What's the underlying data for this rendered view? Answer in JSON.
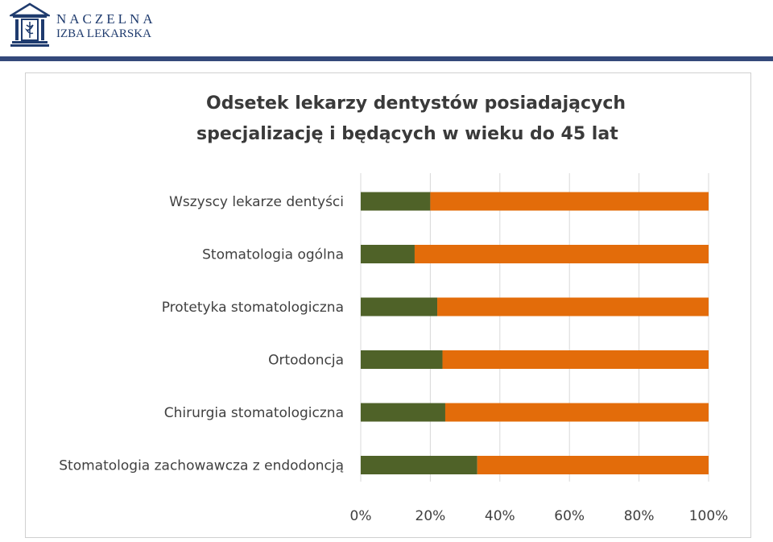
{
  "header": {
    "logo_line1": "NACZELNA",
    "logo_line2": "IZBA LEKARSKA",
    "brand_color": "#1f3b6e",
    "rule_color": "#34497a"
  },
  "chart_data": {
    "type": "bar",
    "orientation": "horizontal",
    "stacked": "percent",
    "title_lines": [
      "Odsetek lekarzy dentystów posiadających",
      "specjalizację i będących w wieku do 45 lat"
    ],
    "categories": [
      "Wszyscy lekarze dentyści",
      "Stomatologia ogólna",
      "Protetyka stomatologiczna",
      "Ortodoncja",
      "Chirurgia stomatologiczna",
      "Stomatologia zachowawcza z endodoncją"
    ],
    "series": [
      {
        "color": "#4f6228",
        "values": [
          20,
          15.5,
          22,
          23.5,
          24.3,
          33.5
        ]
      },
      {
        "color": "#e36c0a",
        "values": [
          80,
          84.5,
          78,
          76.5,
          75.7,
          66.5
        ]
      }
    ],
    "x_ticks": [
      "0%",
      "20%",
      "40%",
      "60%",
      "80%",
      "100%"
    ],
    "xlim": [
      0,
      100
    ],
    "grid": "vertical",
    "legend": "none"
  }
}
